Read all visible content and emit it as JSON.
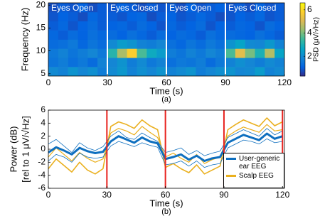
{
  "chart_data": [
    {
      "type": "heatmap",
      "xlabel": "Time (s)",
      "ylabel": "Frequency (Hz)",
      "caption": "(a)",
      "colorbar_label": "PSD (μV/√Hz)",
      "colormap": "parula",
      "clim": [
        0.3,
        6.6
      ],
      "cticks": [
        2,
        4,
        6
      ],
      "xlim": [
        0,
        120
      ],
      "xticks": [
        0,
        30,
        60,
        90,
        120
      ],
      "ylim": [
        4.5,
        20.5
      ],
      "yticks": [
        5,
        10,
        15,
        20
      ],
      "segments": [
        {
          "label": "Eyes Open",
          "start": 0,
          "end": 30
        },
        {
          "label": "Eyes Closed",
          "start": 30,
          "end": 60
        },
        {
          "label": "Eyes Open",
          "start": 60,
          "end": 90
        },
        {
          "label": "Eyes Closed",
          "start": 90,
          "end": 120
        }
      ],
      "x_bins": [
        0,
        5,
        10,
        15,
        20,
        25,
        30,
        35,
        40,
        45,
        50,
        55,
        60,
        65,
        70,
        75,
        80,
        85,
        90,
        95,
        100,
        105,
        110,
        115,
        120
      ],
      "y_bins": [
        4.5,
        6.5,
        8.5,
        10.5,
        12.5,
        14.5,
        16.5,
        18.5,
        20.5
      ],
      "values": [
        [
          2.0,
          1.8,
          2.2,
          1.9,
          2.1,
          1.7,
          2.0,
          2.3,
          1.8,
          2.1,
          1.9,
          2.2,
          1.8,
          2.0,
          2.2,
          1.7,
          1.9,
          2.1,
          2.2,
          1.9,
          2.0,
          2.4,
          1.8,
          2.0
        ],
        [
          1.5,
          1.7,
          1.4,
          1.6,
          1.3,
          1.8,
          1.9,
          2.2,
          1.7,
          2.0,
          1.6,
          1.8,
          1.4,
          1.6,
          1.5,
          1.7,
          1.3,
          1.6,
          1.8,
          2.1,
          1.9,
          1.7,
          2.0,
          1.8
        ],
        [
          1.6,
          1.8,
          1.5,
          1.7,
          1.9,
          1.6,
          3.2,
          4.5,
          5.8,
          3.6,
          2.8,
          2.4,
          1.7,
          1.5,
          1.8,
          1.6,
          1.9,
          1.7,
          3.6,
          5.2,
          4.0,
          3.0,
          4.6,
          2.6
        ],
        [
          1.3,
          1.4,
          1.6,
          1.2,
          1.5,
          1.3,
          2.0,
          2.4,
          2.2,
          1.8,
          1.7,
          1.9,
          1.4,
          1.2,
          1.5,
          1.3,
          1.6,
          1.4,
          2.2,
          2.6,
          2.0,
          1.9,
          2.3,
          1.8
        ],
        [
          1.2,
          1.0,
          1.3,
          1.1,
          1.4,
          1.2,
          1.3,
          1.1,
          1.4,
          1.2,
          1.0,
          1.3,
          1.1,
          1.3,
          1.2,
          1.0,
          1.4,
          1.2,
          1.3,
          1.2,
          1.1,
          1.4,
          1.2,
          1.0
        ],
        [
          1.0,
          1.2,
          0.9,
          1.1,
          1.3,
          1.0,
          1.1,
          1.2,
          1.0,
          1.3,
          1.1,
          0.9,
          1.2,
          1.0,
          1.1,
          1.3,
          0.9,
          1.1,
          1.0,
          1.2,
          1.1,
          0.9,
          1.3,
          1.1
        ],
        [
          0.9,
          1.1,
          1.0,
          0.8,
          1.2,
          1.0,
          1.0,
          0.9,
          1.1,
          1.2,
          0.8,
          1.0,
          1.1,
          0.9,
          1.0,
          1.2,
          1.0,
          0.8,
          0.9,
          1.1,
          1.0,
          1.2,
          0.9,
          1.0
        ],
        [
          0.8,
          1.0,
          0.9,
          1.1,
          0.8,
          1.0,
          0.9,
          1.1,
          1.0,
          0.8,
          1.0,
          0.9,
          1.0,
          0.8,
          1.1,
          0.9,
          1.0,
          1.1,
          0.9,
          1.0,
          0.8,
          1.1,
          0.9,
          1.0
        ]
      ]
    },
    {
      "type": "line",
      "xlabel": "Time (s)",
      "ylabel": [
        "Power (dB)",
        "[rel to 1 μV/√Hz]"
      ],
      "caption": "(b)",
      "xlim": [
        0,
        121
      ],
      "xticks": [
        0,
        30,
        60,
        90,
        120
      ],
      "ylim": [
        -6,
        6
      ],
      "yticks": [
        -6,
        -4,
        -2,
        0,
        2,
        4,
        6
      ],
      "vlines": [
        30,
        60,
        90,
        120
      ],
      "vline_color": "#e8231f",
      "legend": "lower right",
      "x": [
        0,
        4,
        8,
        12,
        16,
        20,
        24,
        28,
        32,
        36,
        40,
        44,
        48,
        52,
        56,
        60,
        64,
        68,
        72,
        76,
        80,
        84,
        88,
        92,
        96,
        100,
        104,
        108,
        112,
        116,
        120
      ],
      "series": [
        {
          "name": "User-generic ear EEG",
          "color": "#0e6fbf",
          "line_width": 3,
          "values": [
            -0.5,
            0.3,
            -0.2,
            -0.8,
            0.2,
            -0.3,
            -0.6,
            -0.4,
            1.2,
            2.0,
            1.5,
            1.0,
            1.8,
            1.2,
            0.9,
            -1.5,
            -1.2,
            -0.8,
            -1.6,
            -1.0,
            -1.8,
            -1.4,
            -1.2,
            1.0,
            1.6,
            2.2,
            1.8,
            1.4,
            2.4,
            1.6,
            2.0
          ]
        },
        {
          "color": "#0e6fbf",
          "line_width": 0.8,
          "values": [
            0.8,
            1.5,
            0.5,
            -0.5,
            1.0,
            0.2,
            -0.2,
            0.4,
            2.0,
            2.8,
            1.8,
            1.5,
            2.5,
            1.8,
            1.2,
            -0.5,
            -0.2,
            0.2,
            -0.8,
            -0.2,
            -1.0,
            -0.6,
            -0.3,
            1.8,
            2.4,
            3.0,
            2.5,
            2.0,
            3.2,
            2.2,
            2.8
          ]
        },
        {
          "color": "#0e6fbf",
          "line_width": 0.8,
          "values": [
            -1.8,
            -0.8,
            -1.2,
            -2.0,
            -0.6,
            -1.2,
            -1.4,
            -1.2,
            0.5,
            1.2,
            0.8,
            0.4,
            1.0,
            0.6,
            0.3,
            -2.4,
            -2.2,
            -1.8,
            -2.6,
            -1.8,
            -2.8,
            -2.4,
            -2.2,
            0.2,
            0.8,
            1.4,
            1.2,
            0.8,
            1.6,
            1.0,
            1.2
          ]
        },
        {
          "name": "Scalp EEG",
          "color": "#eab01f",
          "line_width": 1.6,
          "values": [
            -3.0,
            -1.5,
            -2.5,
            -3.5,
            -2.0,
            -3.2,
            -3.8,
            -3.0,
            3.5,
            4.2,
            3.8,
            3.2,
            4.5,
            3.6,
            3.0,
            -2.8,
            -2.2,
            -3.0,
            -3.6,
            -2.4,
            -3.8,
            -3.2,
            -2.6,
            3.0,
            3.8,
            4.5,
            4.0,
            3.5,
            4.8,
            3.6,
            4.2
          ]
        },
        {
          "color": "#eab01f",
          "line_width": 1.2,
          "values": [
            -1.2,
            0.2,
            -0.8,
            -1.8,
            -0.5,
            -1.4,
            -2.0,
            -1.5,
            2.5,
            3.2,
            2.8,
            2.2,
            3.5,
            2.6,
            1.8,
            -1.2,
            -0.6,
            -1.4,
            -2.0,
            -0.8,
            -2.2,
            -1.6,
            -1.2,
            2.0,
            2.8,
            3.4,
            3.0,
            2.6,
            3.8,
            2.8,
            3.0
          ]
        }
      ]
    }
  ]
}
